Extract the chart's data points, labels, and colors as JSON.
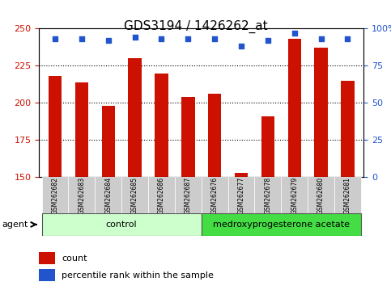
{
  "title": "GDS3194 / 1426262_at",
  "samples": [
    "GSM262682",
    "GSM262683",
    "GSM262684",
    "GSM262685",
    "GSM262686",
    "GSM262687",
    "GSM262676",
    "GSM262677",
    "GSM262678",
    "GSM262679",
    "GSM262680",
    "GSM262681"
  ],
  "counts": [
    218,
    214,
    198,
    230,
    220,
    204,
    206,
    153,
    191,
    243,
    237,
    215
  ],
  "percentiles": [
    93,
    93,
    92,
    94,
    93,
    93,
    93,
    88,
    92,
    97,
    93,
    93
  ],
  "groups": [
    "control",
    "control",
    "control",
    "control",
    "control",
    "control",
    "medroxyprogesterone acetate",
    "medroxyprogesterone acetate",
    "medroxyprogesterone acetate",
    "medroxyprogesterone acetate",
    "medroxyprogesterone acetate",
    "medroxyprogesterone acetate"
  ],
  "ylim_left": [
    150,
    250
  ],
  "ylim_right": [
    0,
    100
  ],
  "yticks_left": [
    150,
    175,
    200,
    225,
    250
  ],
  "yticks_right": [
    0,
    25,
    50,
    75,
    100
  ],
  "bar_color": "#cc1100",
  "dot_color": "#2255cc",
  "grid_color": "#000000",
  "bg_color": "#ffffff",
  "plot_bg": "#ffffff",
  "control_color": "#ccffcc",
  "treatment_color": "#55ee55",
  "tick_area_color": "#cccccc",
  "left_label_color": "#cc1100",
  "right_label_color": "#2255cc",
  "bar_width": 0.5
}
